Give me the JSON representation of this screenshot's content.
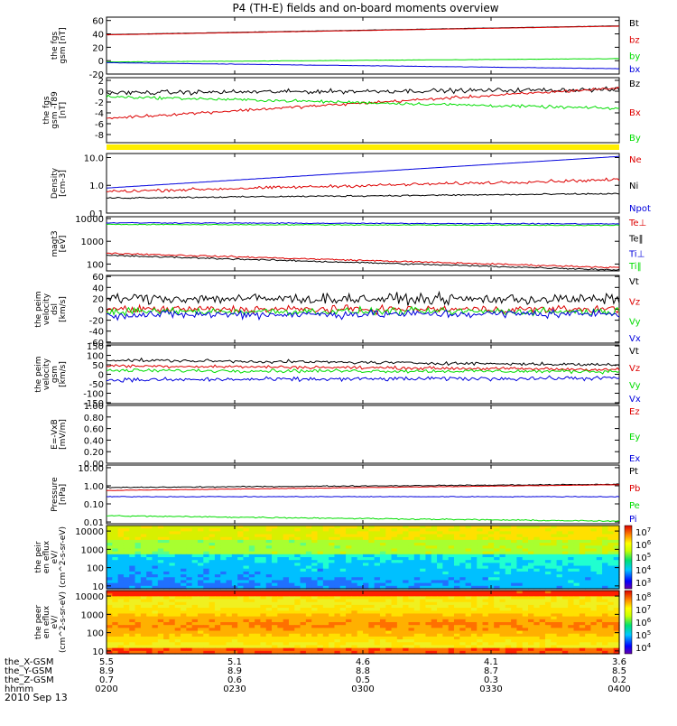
{
  "title": "P4 (TH-E) fields and on-board moments overview",
  "date_label": "2010 Sep 13",
  "footer": {
    "rows": [
      {
        "label": "the_X-GSM",
        "values": [
          "5.5",
          "5.1",
          "4.6",
          "4.1",
          "3.6"
        ]
      },
      {
        "label": "the_Y-GSM",
        "values": [
          "8.9",
          "8.9",
          "8.8",
          "8.7",
          "8.5"
        ]
      },
      {
        "label": "the_Z-GSM",
        "values": [
          "0.7",
          "0.6",
          "0.5",
          "0.3",
          "0.2"
        ]
      },
      {
        "label": "hhmm",
        "values": [
          "0200",
          "0230",
          "0300",
          "0330",
          "0400"
        ]
      }
    ]
  },
  "colorbars": [
    {
      "panel": 10,
      "ticks": [
        "10^7",
        "10^6",
        "10^5",
        "10^4",
        "10^3"
      ]
    },
    {
      "panel": 11,
      "ticks": [
        "10^8",
        "10^7",
        "10^6",
        "10^5",
        "10^4"
      ]
    }
  ],
  "chart_data": [
    {
      "type": "line",
      "panel": 0,
      "ylabel": "the fgs gsm [nT]",
      "yticks": [
        "60",
        "40",
        "20",
        "0",
        "-20"
      ],
      "ylim": [
        -20,
        65
      ],
      "scale": "linear",
      "series": [
        {
          "name": "Bt",
          "color": "#000000",
          "start": 39,
          "end": 52,
          "noise": 0.3
        },
        {
          "name": "bz",
          "color": "#dd0000",
          "start": 38.6,
          "end": 51.6,
          "noise": 0.3
        },
        {
          "name": "by",
          "color": "#00dd00",
          "start": -2,
          "end": 3,
          "noise": 0.4
        },
        {
          "name": "bx",
          "color": "#0000dd",
          "start": -3,
          "end": -12,
          "noise": 0.4
        }
      ]
    },
    {
      "type": "line",
      "panel": 1,
      "ylabel": "the fgs gsm -T89 [nT]",
      "yticks": [
        "2",
        "0",
        "-2",
        "-4",
        "-6",
        "-8"
      ],
      "ylim": [
        -9.5,
        2.5
      ],
      "scale": "linear",
      "series": [
        {
          "name": "Bz",
          "color": "#000000",
          "start": -0.3,
          "end": 0.3,
          "noise": 0.6
        },
        {
          "name": "Bx",
          "color": "#dd0000",
          "start": -5,
          "end": 0.6,
          "noise": 0.4
        },
        {
          "name": "By",
          "color": "#00dd00",
          "start": -1,
          "end": -3.2,
          "noise": 0.4
        }
      ]
    },
    {
      "type": "line",
      "panel": 2,
      "ylabel": "Density [cm-3]",
      "yticks": [
        "10.0",
        "1.0",
        "0.1"
      ],
      "ylim": [
        0.1,
        14
      ],
      "scale": "log",
      "series": [
        {
          "name": "Ne",
          "color": "#dd0000",
          "start": 0.6,
          "end": 1.6,
          "noise": 0.08
        },
        {
          "name": "Ni",
          "color": "#000000",
          "start": 0.35,
          "end": 0.5,
          "noise": 0.04
        },
        {
          "name": "Npot",
          "color": "#0000dd",
          "start": 0.8,
          "end": 11,
          "noise": 0.0
        }
      ]
    },
    {
      "type": "line",
      "panel": 3,
      "ylabel": "magt3 [eV]",
      "yticks": [
        "10000",
        "1000",
        "100"
      ],
      "ylim": [
        50,
        12000
      ],
      "scale": "log",
      "series": [
        {
          "name": "Te⊥",
          "color": "#dd0000",
          "start": 300,
          "end": 70,
          "noise": 0.05
        },
        {
          "name": "Te‖",
          "color": "#000000",
          "start": 240,
          "end": 55,
          "noise": 0.05
        },
        {
          "name": "Ti⊥",
          "color": "#0000dd",
          "start": 6500,
          "end": 5800,
          "noise": 0.03
        },
        {
          "name": "Ti‖",
          "color": "#00dd00",
          "start": 5500,
          "end": 5000,
          "noise": 0.03
        }
      ]
    },
    {
      "type": "line",
      "panel": 4,
      "ylabel": "the peim velocity dsl [km/s]",
      "yticks": [
        "60",
        "40",
        "20",
        "0",
        "-20",
        "-40",
        "-60"
      ],
      "ylim": [
        -62,
        62
      ],
      "scale": "linear",
      "series": [
        {
          "name": "Vt",
          "color": "#000000",
          "start": 20,
          "end": 18,
          "noise": 14
        },
        {
          "name": "Vz",
          "color": "#dd0000",
          "start": 0,
          "end": 0,
          "noise": 10
        },
        {
          "name": "Vy",
          "color": "#00dd00",
          "start": -4,
          "end": -4,
          "noise": 10
        },
        {
          "name": "Vx",
          "color": "#0000dd",
          "start": -10,
          "end": -8,
          "noise": 11
        }
      ]
    },
    {
      "type": "line",
      "panel": 5,
      "ylabel": "the peim velocity gsm [km/s]",
      "yticks": [
        "150",
        "100",
        "50",
        "0",
        "-50",
        "-100",
        "-150"
      ],
      "ylim": [
        -155,
        155
      ],
      "scale": "linear",
      "series": [
        {
          "name": "Vt",
          "color": "#000000",
          "start": 75,
          "end": 50,
          "noise": 12
        },
        {
          "name": "Vz",
          "color": "#dd0000",
          "start": 45,
          "end": 25,
          "noise": 12
        },
        {
          "name": "Vy",
          "color": "#00dd00",
          "start": 20,
          "end": 15,
          "noise": 14
        },
        {
          "name": "Vx",
          "color": "#0000dd",
          "start": -30,
          "end": -20,
          "noise": 16
        }
      ]
    },
    {
      "type": "line",
      "panel": 6,
      "ylabel": "E=-VxB [mV/m]",
      "yticks": [
        "1.00",
        "0.80",
        "0.60",
        "0.40",
        "0.20",
        "0.00"
      ],
      "ylim": [
        0,
        1
      ],
      "scale": "linear",
      "series": [
        {
          "name": "Ez",
          "color": "#dd0000",
          "start": null,
          "end": null,
          "noise": 0
        },
        {
          "name": "Ey",
          "color": "#00dd00",
          "start": null,
          "end": null,
          "noise": 0
        },
        {
          "name": "Ex",
          "color": "#0000dd",
          "start": null,
          "end": null,
          "noise": 0
        }
      ]
    },
    {
      "type": "line",
      "panel": 7,
      "ylabel": "Pressure [nPa]",
      "yticks": [
        "10.00",
        "1.00",
        "0.10",
        "0.01"
      ],
      "ylim": [
        0.008,
        14
      ],
      "scale": "log",
      "series": [
        {
          "name": "Pt",
          "color": "#000000",
          "start": 0.8,
          "end": 1.2,
          "noise": 0.04
        },
        {
          "name": "Pb",
          "color": "#dd0000",
          "start": 0.55,
          "end": 1.15,
          "noise": 0.02
        },
        {
          "name": "Pe",
          "color": "#00dd00",
          "start": 0.022,
          "end": 0.011,
          "noise": 0.05
        },
        {
          "name": "Pi",
          "color": "#0000dd",
          "start": 0.25,
          "end": 0.25,
          "noise": 0.03
        }
      ]
    },
    {
      "type": "heatmap",
      "panel": 10,
      "ylabel": "the peir en eflux eV/ (cm^2-s-sr-eV)",
      "yticks": [
        "10000",
        "1000",
        "100",
        "10"
      ],
      "ylim": [
        7,
        20000
      ],
      "scale": "log"
    },
    {
      "type": "heatmap",
      "panel": 11,
      "ylabel": "the peer en eflux eV/ (cm^2-s-sr-eV)",
      "yticks": [
        "10000",
        "1000",
        "100",
        "10"
      ],
      "ylim": [
        7,
        20000
      ],
      "scale": "log"
    }
  ]
}
